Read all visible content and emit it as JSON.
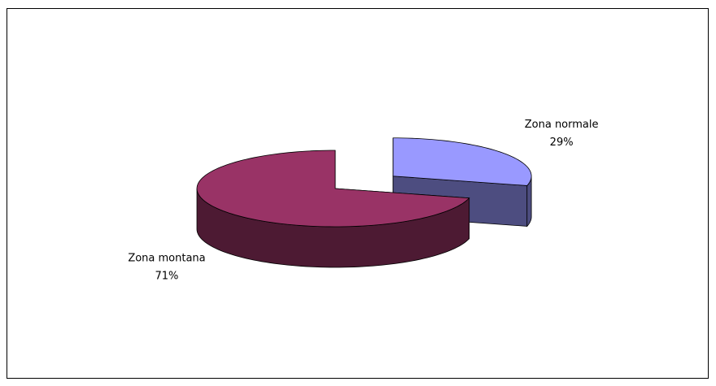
{
  "chart_data": {
    "type": "pie3d",
    "categories": [
      "Zona normale",
      "Zona montana"
    ],
    "values": [
      29,
      71
    ],
    "value_labels": [
      "29%",
      "71%"
    ],
    "colors": [
      "#9999ff",
      "#993366"
    ],
    "side_colors": [
      "#4d4d80",
      "#4d1a33"
    ]
  }
}
